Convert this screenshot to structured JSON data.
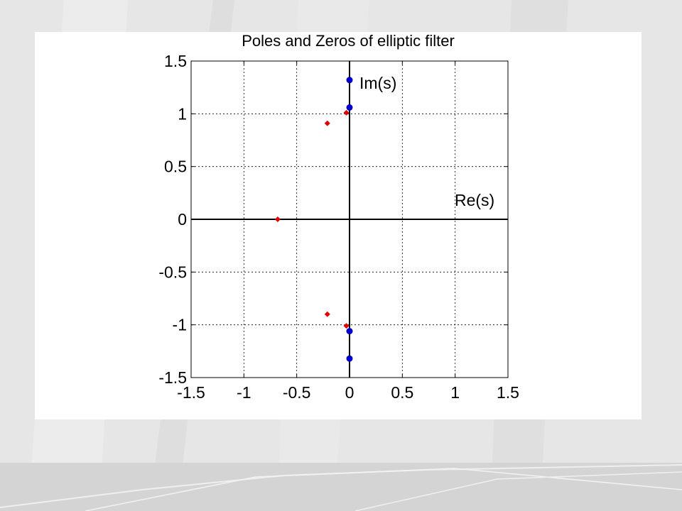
{
  "chart_data": {
    "type": "scatter",
    "title": "Poles and Zeros of elliptic filter",
    "xlabel": "",
    "ylabel": "",
    "xlim": [
      -1.5,
      1.5
    ],
    "ylim": [
      -1.5,
      1.5
    ],
    "xticks": [
      "-1.5",
      "-1",
      "-0.5",
      "0",
      "0.5",
      "1",
      "1.5"
    ],
    "yticks": [
      "1.5",
      "1",
      "0.5",
      "0",
      "-0.5",
      "-1",
      "-1.5"
    ],
    "grid": true,
    "annotations": {
      "imag_axis": "Im(s)",
      "real_axis": "Re(s)"
    },
    "series": [
      {
        "marker": "circle",
        "color": "#0000cc",
        "points": [
          [
            0,
            1.32
          ],
          [
            0,
            1.06
          ],
          [
            0,
            -1.06
          ],
          [
            0,
            -1.32
          ]
        ]
      },
      {
        "marker": "diamond",
        "color": "#e00000",
        "points": [
          [
            -0.68,
            0
          ],
          [
            -0.21,
            0.91
          ],
          [
            -0.21,
            -0.9
          ],
          [
            -0.03,
            1.01
          ],
          [
            -0.03,
            -1.01
          ]
        ]
      }
    ]
  }
}
